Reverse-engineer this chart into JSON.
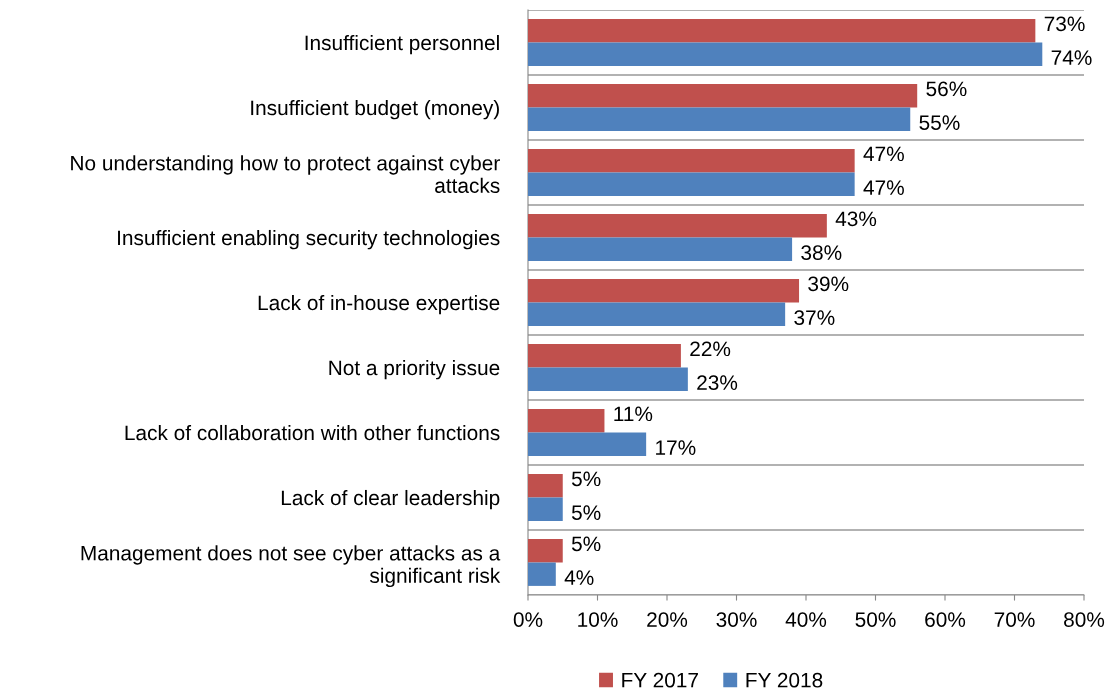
{
  "chart_data": {
    "type": "bar",
    "orientation": "horizontal",
    "categories": [
      "Insufficient personnel",
      "Insufficient budget (money)",
      "No understanding how to protect against cyber\nattacks",
      "Insufficient enabling security technologies",
      "Lack of in-house expertise",
      "Not a priority issue",
      "Lack of collaboration with other functions",
      "Lack of clear leadership",
      "Management does not see cyber attacks as a\nsignificant risk"
    ],
    "series": [
      {
        "name": "FY 2017",
        "color": "#c0504d",
        "values": [
          73,
          56,
          47,
          43,
          39,
          22,
          11,
          5,
          5
        ],
        "value_labels": [
          "73%",
          "56%",
          "47%",
          "43%",
          "39%",
          "22%",
          "11%",
          "5%",
          "5%"
        ]
      },
      {
        "name": "FY 2018",
        "color": "#4f81bd",
        "values": [
          74,
          55,
          47,
          38,
          37,
          23,
          17,
          5,
          4
        ],
        "value_labels": [
          "74%",
          "55%",
          "47%",
          "38%",
          "37%",
          "23%",
          "17%",
          "5%",
          "4%"
        ]
      }
    ],
    "xlim": [
      0,
      80
    ],
    "xticks": [
      {
        "value": 0,
        "label": "0%"
      },
      {
        "value": 10,
        "label": "10%"
      },
      {
        "value": 20,
        "label": "20%"
      },
      {
        "value": 30,
        "label": "30%"
      },
      {
        "value": 40,
        "label": "40%"
      },
      {
        "value": 50,
        "label": "50%"
      },
      {
        "value": 60,
        "label": "60%"
      },
      {
        "value": 70,
        "label": "70%"
      },
      {
        "value": 80,
        "label": "80%"
      }
    ],
    "grid": "y",
    "legend": "bottom"
  }
}
